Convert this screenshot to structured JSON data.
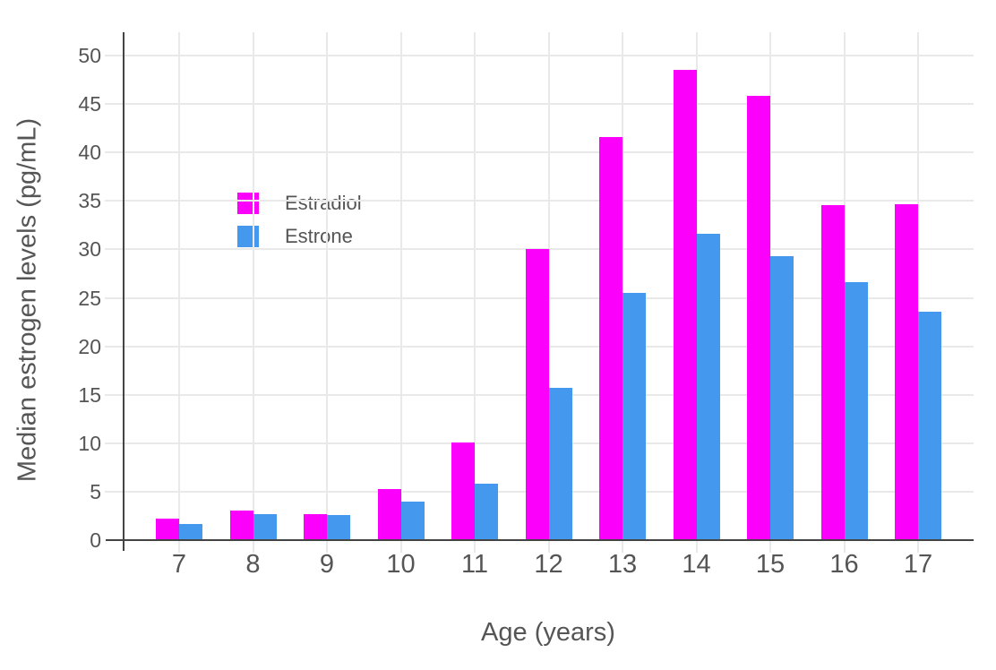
{
  "chart_data": {
    "type": "bar",
    "title": "",
    "xlabel": "Age (years)",
    "ylabel": "Median estrogen levels (pg/mL)",
    "categories": [
      "7",
      "8",
      "9",
      "10",
      "11",
      "12",
      "13",
      "14",
      "15",
      "16",
      "17"
    ],
    "series": [
      {
        "name": "Estradiol",
        "color": "#fb00fb",
        "values": [
          2.2,
          3.1,
          2.7,
          5.3,
          10.1,
          30.0,
          41.6,
          48.5,
          45.8,
          34.6,
          34.7
        ]
      },
      {
        "name": "Estrone",
        "color": "#4499ee",
        "values": [
          1.7,
          2.7,
          2.6,
          4.0,
          5.8,
          15.7,
          25.5,
          31.6,
          29.3,
          26.6,
          23.6
        ]
      }
    ],
    "ylim": [
      0,
      52.4
    ],
    "yticks": [
      0,
      5,
      10,
      15,
      20,
      25,
      30,
      35,
      40,
      45,
      50
    ],
    "grid": "horizontal and vertical light-gray gridlines",
    "legend_position": "inside top-left",
    "axis_color": "#444444",
    "text_color": "#555555",
    "grid_color": "#e9e9e9"
  }
}
